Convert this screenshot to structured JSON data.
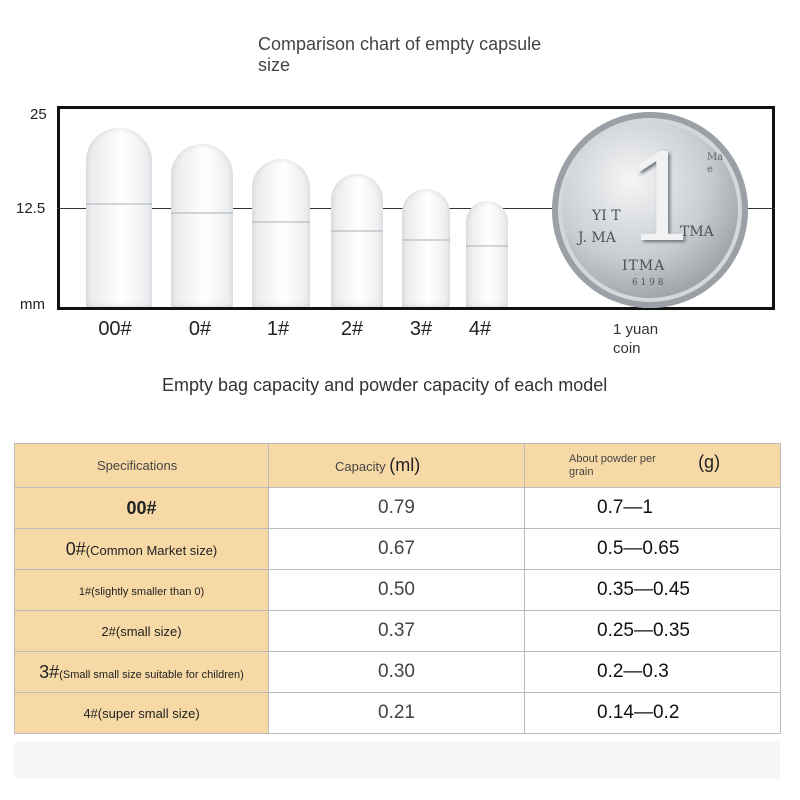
{
  "chart_title": "Comparison chart of empty capsule size",
  "axis": {
    "top": "25",
    "middle": "12.5",
    "unit": "mm"
  },
  "capsules": [
    {
      "label": "00#",
      "height_mm": 23.5
    },
    {
      "label": "0#",
      "height_mm": 21.5
    },
    {
      "label": "1#",
      "height_mm": 19.5
    },
    {
      "label": "2#",
      "height_mm": 17.5
    },
    {
      "label": "3#",
      "height_mm": 15.5
    },
    {
      "label": "4#",
      "height_mm": 14.0
    }
  ],
  "coin": {
    "caption": "1 yuan coin",
    "numeral": "1",
    "text_left": "YI T",
    "text_left2": "J. MA",
    "text_right": "TMA",
    "text_bottom": "ITMA",
    "year": "6 1 9 8",
    "corner": "Ma e"
  },
  "table_title": "Empty bag capacity and powder capacity of each model",
  "table": {
    "headers": {
      "spec": "Specifications",
      "capacity_prefix": "Capacity",
      "capacity_unit": "(ml)",
      "powder_prefix": "About powder per grain",
      "powder_unit": "(g)"
    },
    "rows": [
      {
        "spec_main": "00#",
        "spec_note": "",
        "capacity": "0.79",
        "powder": "0.7—1"
      },
      {
        "spec_main": "0#",
        "spec_note": "(Common Market size)",
        "capacity": "0.67",
        "powder": "0.5—0.65"
      },
      {
        "spec_main": "",
        "spec_note": "1#(slightly smaller than 0)",
        "capacity": "0.50",
        "powder": "0.35—0.45"
      },
      {
        "spec_main": "",
        "spec_note": "2#(small size)",
        "capacity": "0.37",
        "powder": "0.25—0.35"
      },
      {
        "spec_main": "3#",
        "spec_note": "(Small small size suitable for children)",
        "capacity": "0.30",
        "powder": "0.2—0.3"
      },
      {
        "spec_main": "",
        "spec_note": "4#(super small size)",
        "capacity": "0.21",
        "powder": "0.14—0.2"
      }
    ]
  }
}
